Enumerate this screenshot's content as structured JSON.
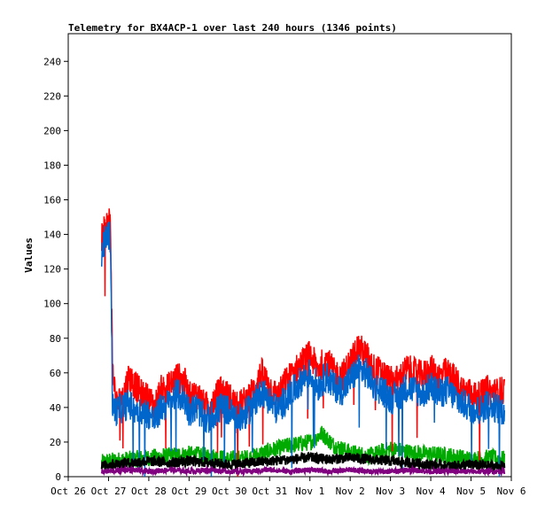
{
  "chart_data": {
    "type": "line",
    "title": "Telemetry for BX4ACP-1 over last 240 hours (1346 points)",
    "xlabel": "",
    "ylabel": "Values",
    "ylim": [
      0,
      256
    ],
    "yticks": [
      0,
      20,
      40,
      60,
      80,
      100,
      120,
      140,
      160,
      180,
      200,
      220,
      240
    ],
    "x_ticks": [
      "Oct 26",
      "Oct 27",
      "Oct 28",
      "Oct 29",
      "Oct 30",
      "Oct 31",
      "Nov 1",
      "Nov 2",
      "Nov 3",
      "Nov 4",
      "Nov 5",
      "Nov 6"
    ],
    "x_range_days": [
      0,
      11
    ],
    "data_start_day": 0.83,
    "data_end_day": 10.83,
    "grid": false,
    "legend": "none",
    "series_note": "unnamed series, values read approximately from the plot",
    "series": [
      {
        "color": "#ff0000",
        "points": [
          [
            0.83,
            138
          ],
          [
            0.9,
            142
          ],
          [
            1.0,
            148
          ],
          [
            1.05,
            147
          ],
          [
            1.1,
            62
          ],
          [
            1.2,
            42
          ],
          [
            1.35,
            46
          ],
          [
            1.5,
            58
          ],
          [
            1.6,
            55
          ],
          [
            1.8,
            48
          ],
          [
            2.0,
            45
          ],
          [
            2.15,
            40
          ],
          [
            2.3,
            50
          ],
          [
            2.5,
            52
          ],
          [
            2.7,
            58
          ],
          [
            2.9,
            54
          ],
          [
            3.0,
            46
          ],
          [
            3.2,
            48
          ],
          [
            3.4,
            40
          ],
          [
            3.6,
            44
          ],
          [
            3.8,
            50
          ],
          [
            4.0,
            46
          ],
          [
            4.2,
            40
          ],
          [
            4.4,
            44
          ],
          [
            4.6,
            50
          ],
          [
            4.8,
            60
          ],
          [
            5.0,
            52
          ],
          [
            5.2,
            46
          ],
          [
            5.4,
            55
          ],
          [
            5.6,
            60
          ],
          [
            5.8,
            66
          ],
          [
            6.0,
            70
          ],
          [
            6.2,
            62
          ],
          [
            6.4,
            68
          ],
          [
            6.6,
            60
          ],
          [
            6.8,
            58
          ],
          [
            7.0,
            66
          ],
          [
            7.2,
            75
          ],
          [
            7.4,
            70
          ],
          [
            7.6,
            62
          ],
          [
            7.8,
            60
          ],
          [
            8.0,
            55
          ],
          [
            8.2,
            56
          ],
          [
            8.4,
            62
          ],
          [
            8.6,
            60
          ],
          [
            8.8,
            58
          ],
          [
            9.0,
            62
          ],
          [
            9.2,
            58
          ],
          [
            9.4,
            60
          ],
          [
            9.6,
            56
          ],
          [
            9.8,
            50
          ],
          [
            10.0,
            48
          ],
          [
            10.2,
            46
          ],
          [
            10.4,
            50
          ],
          [
            10.6,
            48
          ],
          [
            10.83,
            50
          ]
        ]
      },
      {
        "color": "#0066cc",
        "points": [
          [
            0.83,
            130
          ],
          [
            0.9,
            136
          ],
          [
            1.0,
            140
          ],
          [
            1.05,
            138
          ],
          [
            1.1,
            40
          ],
          [
            1.2,
            38
          ],
          [
            1.35,
            40
          ],
          [
            1.5,
            42
          ],
          [
            1.6,
            40
          ],
          [
            1.8,
            38
          ],
          [
            2.0,
            36
          ],
          [
            2.15,
            32
          ],
          [
            2.3,
            40
          ],
          [
            2.5,
            42
          ],
          [
            2.7,
            48
          ],
          [
            2.9,
            44
          ],
          [
            3.0,
            38
          ],
          [
            3.2,
            40
          ],
          [
            3.4,
            32
          ],
          [
            3.6,
            36
          ],
          [
            3.8,
            40
          ],
          [
            4.0,
            38
          ],
          [
            4.2,
            32
          ],
          [
            4.4,
            36
          ],
          [
            4.6,
            42
          ],
          [
            4.8,
            50
          ],
          [
            5.0,
            44
          ],
          [
            5.2,
            38
          ],
          [
            5.4,
            45
          ],
          [
            5.6,
            50
          ],
          [
            5.8,
            56
          ],
          [
            6.0,
            60
          ],
          [
            6.2,
            52
          ],
          [
            6.4,
            58
          ],
          [
            6.6,
            52
          ],
          [
            6.8,
            50
          ],
          [
            7.0,
            56
          ],
          [
            7.2,
            62
          ],
          [
            7.4,
            60
          ],
          [
            7.6,
            52
          ],
          [
            7.8,
            50
          ],
          [
            8.0,
            45
          ],
          [
            8.2,
            46
          ],
          [
            8.4,
            52
          ],
          [
            8.6,
            50
          ],
          [
            8.8,
            48
          ],
          [
            9.0,
            52
          ],
          [
            9.2,
            48
          ],
          [
            9.4,
            50
          ],
          [
            9.6,
            46
          ],
          [
            9.8,
            42
          ],
          [
            10.0,
            40
          ],
          [
            10.2,
            38
          ],
          [
            10.4,
            42
          ],
          [
            10.6,
            40
          ],
          [
            10.83,
            38
          ]
        ]
      },
      {
        "color": "#00aa00",
        "points": [
          [
            0.83,
            8
          ],
          [
            1.0,
            9
          ],
          [
            1.5,
            10
          ],
          [
            2.0,
            11
          ],
          [
            2.5,
            12
          ],
          [
            3.0,
            13
          ],
          [
            3.5,
            12
          ],
          [
            4.0,
            10
          ],
          [
            4.5,
            11
          ],
          [
            5.0,
            15
          ],
          [
            5.5,
            18
          ],
          [
            6.0,
            20
          ],
          [
            6.3,
            25
          ],
          [
            6.6,
            18
          ],
          [
            7.0,
            14
          ],
          [
            7.5,
            12
          ],
          [
            8.0,
            16
          ],
          [
            8.5,
            14
          ],
          [
            9.0,
            13
          ],
          [
            9.5,
            12
          ],
          [
            10.0,
            10
          ],
          [
            10.5,
            11
          ],
          [
            10.83,
            10
          ]
        ]
      },
      {
        "color": "#000000",
        "points": [
          [
            0.83,
            6
          ],
          [
            1.0,
            7
          ],
          [
            1.5,
            8
          ],
          [
            2.0,
            9
          ],
          [
            2.5,
            8
          ],
          [
            3.0,
            9
          ],
          [
            3.5,
            8
          ],
          [
            4.0,
            7
          ],
          [
            4.5,
            8
          ],
          [
            5.0,
            9
          ],
          [
            5.5,
            10
          ],
          [
            6.0,
            11
          ],
          [
            6.5,
            10
          ],
          [
            7.0,
            11
          ],
          [
            7.5,
            10
          ],
          [
            8.0,
            9
          ],
          [
            8.5,
            8
          ],
          [
            9.0,
            7
          ],
          [
            9.5,
            6
          ],
          [
            10.0,
            7
          ],
          [
            10.5,
            6
          ],
          [
            10.83,
            6
          ]
        ]
      },
      {
        "color": "#800080",
        "points": [
          [
            0.83,
            3
          ],
          [
            1.0,
            3
          ],
          [
            1.5,
            4
          ],
          [
            2.0,
            3
          ],
          [
            2.5,
            4
          ],
          [
            3.0,
            3
          ],
          [
            3.5,
            4
          ],
          [
            4.0,
            3
          ],
          [
            4.5,
            3
          ],
          [
            5.0,
            4
          ],
          [
            5.5,
            3
          ],
          [
            6.0,
            4
          ],
          [
            6.5,
            3
          ],
          [
            7.0,
            4
          ],
          [
            7.5,
            3
          ],
          [
            8.0,
            3
          ],
          [
            8.5,
            4
          ],
          [
            9.0,
            3
          ],
          [
            9.5,
            3
          ],
          [
            10.0,
            3
          ],
          [
            10.5,
            3
          ],
          [
            10.83,
            3
          ]
        ]
      }
    ]
  }
}
